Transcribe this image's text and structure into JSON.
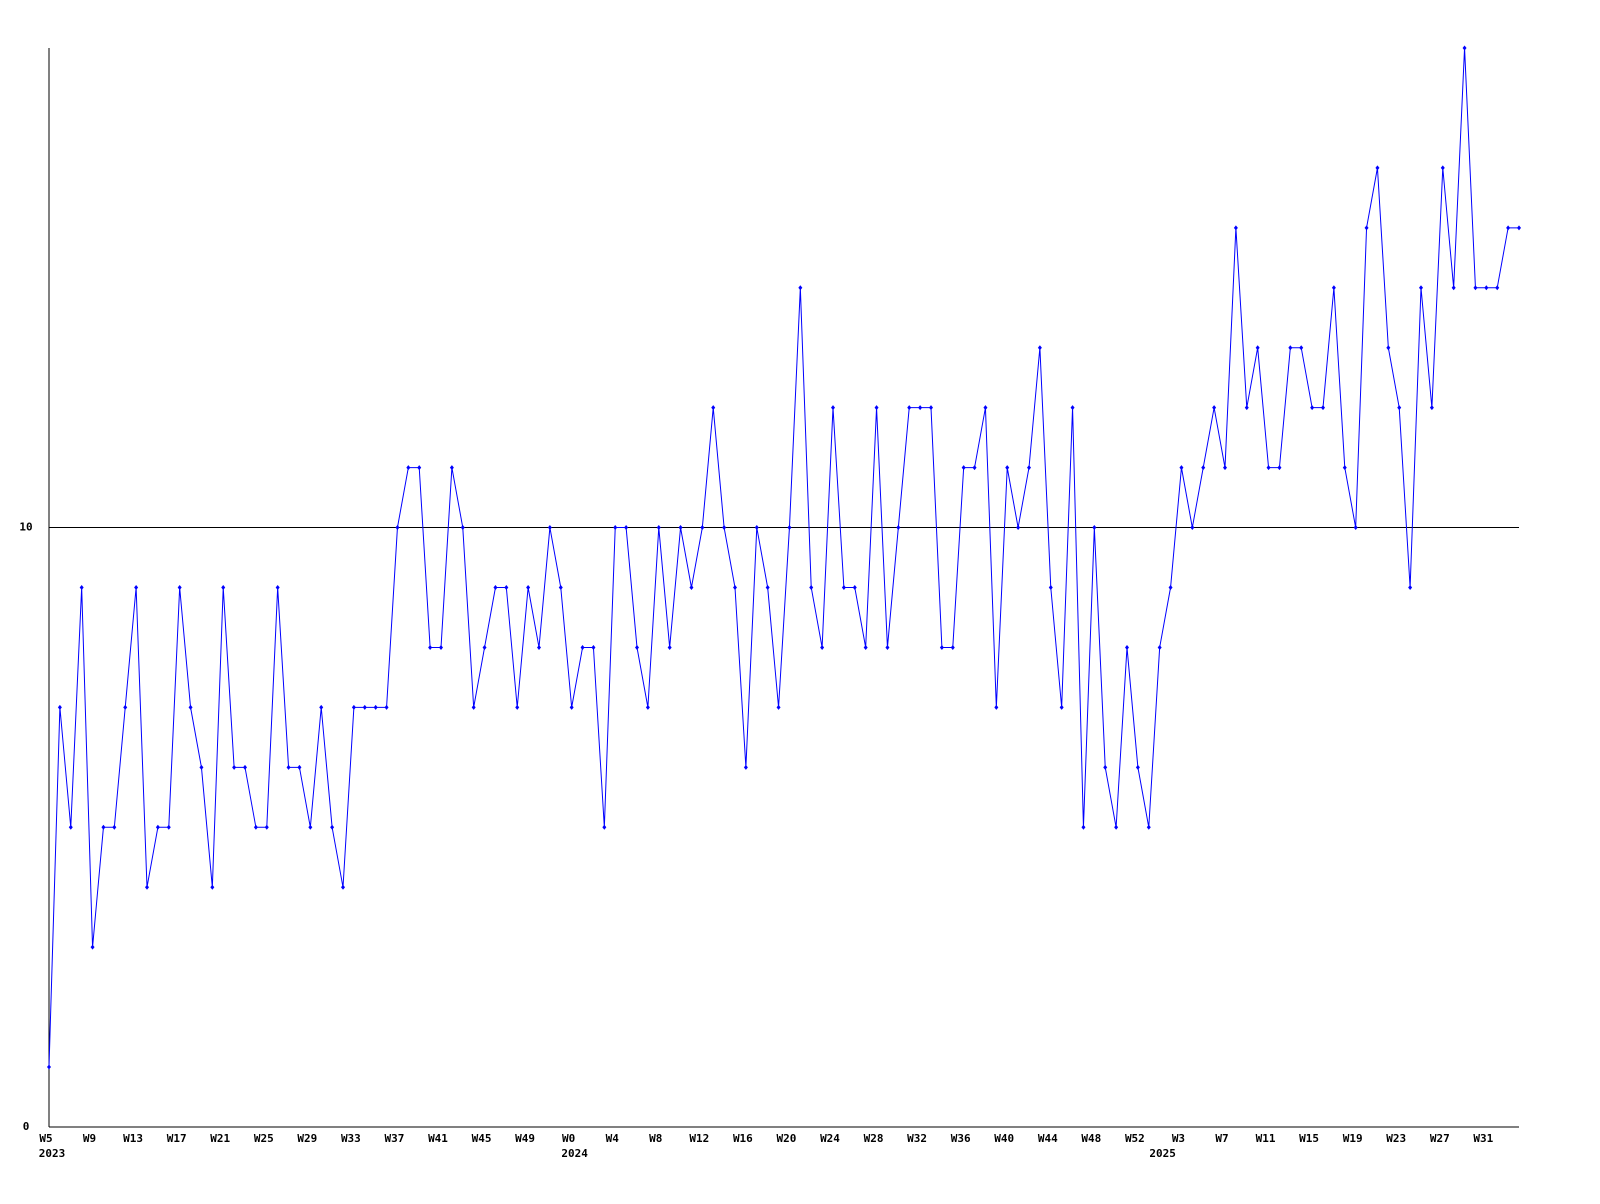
{
  "chart_data": {
    "type": "line",
    "categories": [
      "W5",
      null,
      null,
      null,
      "W9",
      null,
      null,
      null,
      "W13",
      null,
      null,
      null,
      "W17",
      null,
      null,
      null,
      "W21",
      null,
      null,
      null,
      "W25",
      null,
      null,
      null,
      "W29",
      null,
      null,
      null,
      "W33",
      null,
      null,
      null,
      "W37",
      null,
      null,
      null,
      "W41",
      null,
      null,
      null,
      "W45",
      null,
      null,
      null,
      "W49",
      null,
      null,
      null,
      "W0",
      null,
      null,
      null,
      "W4",
      null,
      null,
      null,
      "W8",
      null,
      null,
      null,
      "W12",
      null,
      null,
      null,
      "W16",
      null,
      null,
      null,
      "W20",
      null,
      null,
      null,
      "W24",
      null,
      null,
      null,
      "W28",
      null,
      null,
      null,
      "W32",
      null,
      null,
      null,
      "W36",
      null,
      null,
      null,
      "W40",
      null,
      null,
      null,
      "W44",
      null,
      null,
      null,
      "W48",
      null,
      null,
      null,
      "W52",
      null,
      null,
      null,
      "W3",
      null,
      null,
      null,
      "W7",
      null,
      null,
      null,
      "W11",
      null,
      null,
      null,
      "W15",
      null,
      null,
      null,
      "W19",
      null,
      null,
      null,
      "W23",
      null,
      null,
      null,
      "W27",
      null,
      null,
      null,
      "W31",
      null,
      null,
      null
    ],
    "category_years": [
      "2023",
      null,
      null,
      null,
      null,
      null,
      null,
      null,
      null,
      null,
      null,
      null,
      null,
      null,
      null,
      null,
      null,
      null,
      null,
      null,
      null,
      null,
      null,
      null,
      null,
      null,
      null,
      null,
      null,
      null,
      null,
      null,
      null,
      null,
      null,
      null,
      null,
      null,
      null,
      null,
      null,
      null,
      null,
      null,
      null,
      null,
      null,
      null,
      "2024",
      null,
      null,
      null,
      null,
      null,
      null,
      null,
      null,
      null,
      null,
      null,
      null,
      null,
      null,
      null,
      null,
      null,
      null,
      null,
      null,
      null,
      null,
      null,
      null,
      null,
      null,
      null,
      null,
      null,
      null,
      null,
      null,
      null,
      null,
      null,
      null,
      null,
      null,
      null,
      null,
      null,
      null,
      null,
      null,
      null,
      null,
      null,
      null,
      null,
      null,
      null,
      null,
      null,
      "2025",
      null,
      null,
      null,
      null,
      null,
      null,
      null,
      null,
      null,
      null,
      null,
      null,
      null,
      null,
      null,
      null,
      null,
      null,
      null,
      null,
      null,
      null,
      null,
      null,
      null,
      null,
      null,
      null,
      null,
      null,
      null
    ],
    "values": [
      1,
      7,
      5,
      9,
      3,
      5,
      5,
      7,
      9,
      4,
      5,
      5,
      9,
      7,
      6,
      4,
      9,
      6,
      6,
      5,
      5,
      9,
      6,
      6,
      5,
      7,
      5,
      4,
      7,
      7,
      7,
      7,
      10,
      11,
      11,
      8,
      8,
      11,
      10,
      7,
      8,
      9,
      9,
      7,
      9,
      8,
      10,
      9,
      7,
      8,
      8,
      5,
      10,
      10,
      8,
      7,
      10,
      8,
      10,
      9,
      10,
      12,
      10,
      9,
      6,
      10,
      9,
      7,
      10,
      14,
      9,
      8,
      12,
      9,
      9,
      8,
      12,
      8,
      10,
      12,
      12,
      12,
      8,
      8,
      11,
      11,
      12,
      7,
      11,
      10,
      11,
      13,
      9,
      7,
      12,
      5,
      10,
      6,
      5,
      8,
      6,
      5,
      8,
      9,
      11,
      10,
      11,
      12,
      11,
      15,
      12,
      13,
      11,
      11,
      13,
      13,
      12,
      12,
      14,
      11,
      10,
      15,
      16,
      13,
      12,
      9,
      14,
      12,
      16,
      14,
      18,
      14,
      14,
      14,
      15,
      15
    ],
    "color": "#0000ff",
    "ylim": [
      0,
      18
    ],
    "yticks": [
      0,
      10
    ],
    "grid": true
  }
}
